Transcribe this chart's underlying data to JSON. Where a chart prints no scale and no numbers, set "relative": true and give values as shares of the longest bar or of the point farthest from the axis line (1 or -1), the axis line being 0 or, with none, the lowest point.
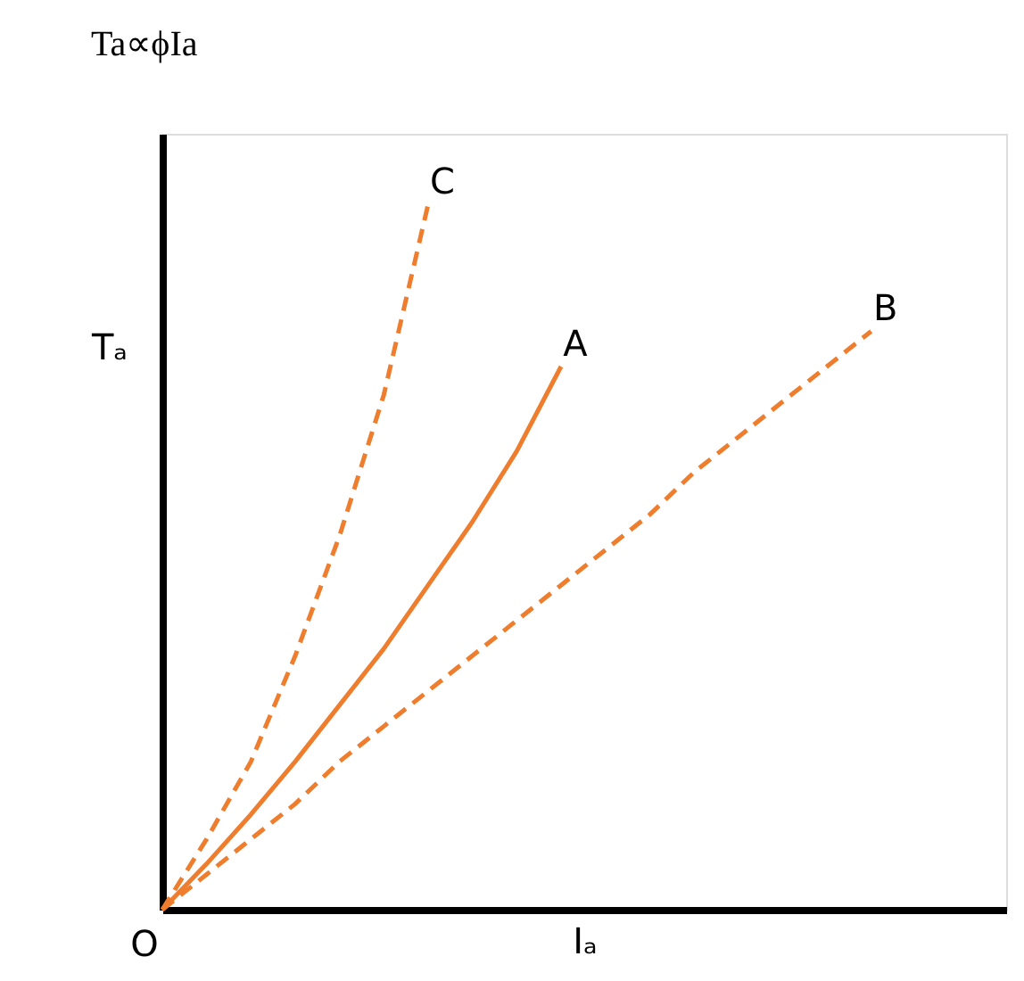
{
  "chart_data": {
    "type": "line",
    "title": "Ta∝ϕIa",
    "xlabel": "Iₐ",
    "ylabel": "Tₐ",
    "relative": true,
    "tick_labels": false,
    "grid": false,
    "legend": false,
    "marker": "none",
    "annotations": [
      "O"
    ],
    "categories": [
      null,
      null,
      null,
      null,
      null,
      null,
      null,
      null,
      null,
      null,
      null,
      null,
      null,
      null,
      null,
      null,
      null
    ],
    "series": [
      {
        "name": "C",
        "color": "#ee7d2d",
        "line_style": "dashed",
        "values": [
          0,
          0.1,
          0.21,
          0.36,
          0.53,
          0.73,
          1,
          null,
          null,
          null,
          null,
          null,
          null,
          null,
          null,
          null,
          null
        ]
      },
      {
        "name": "A",
        "color": "#ee7d2d",
        "line_style": "solid",
        "values": [
          0,
          0.065,
          0.135,
          0.21,
          0.29,
          0.37,
          0.46,
          0.55,
          0.65,
          0.77,
          null,
          null,
          null,
          null,
          null,
          null,
          null
        ]
      },
      {
        "name": "B",
        "color": "#ee7d2d",
        "line_style": "dashed",
        "values": [
          0,
          0.05,
          0.1,
          0.15,
          0.21,
          0.26,
          0.31,
          0.36,
          0.41,
          0.46,
          0.51,
          0.56,
          0.62,
          0.67,
          0.72,
          0.77,
          0.82
        ]
      }
    ]
  }
}
